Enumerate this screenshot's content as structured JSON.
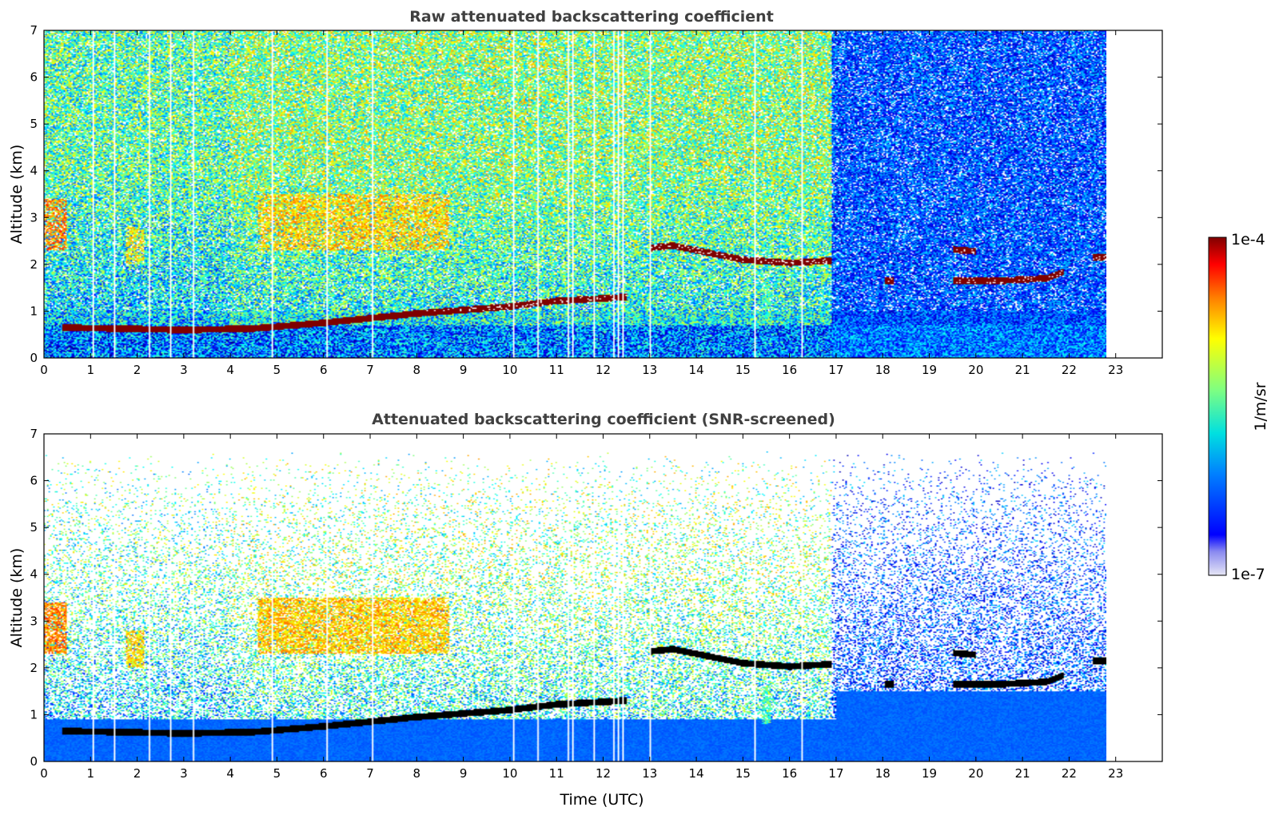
{
  "chart_data": [
    {
      "type": "heatmap",
      "title": "Raw attenuated backscattering coefficient",
      "xlabel": "",
      "ylabel": "Altitude (km)",
      "xlim": [
        0,
        24
      ],
      "ylim": [
        0,
        7
      ],
      "xticks": [
        "0",
        "1",
        "2",
        "3",
        "4",
        "5",
        "6",
        "7",
        "8",
        "9",
        "10",
        "11",
        "12",
        "13",
        "14",
        "15",
        "16",
        "17",
        "18",
        "19",
        "20",
        "21",
        "22",
        "23"
      ],
      "yticks": [
        "0",
        "1",
        "2",
        "3",
        "4",
        "5",
        "6",
        "7"
      ],
      "data_end_time": 22.8,
      "screened": false,
      "features": [
        {
          "name": "boundary layer top",
          "kind": "layer",
          "points": [
            [
              0.4,
              0.65
            ],
            [
              2,
              0.62
            ],
            [
              3,
              0.6
            ],
            [
              4.5,
              0.63
            ],
            [
              6,
              0.75
            ],
            [
              8,
              0.95
            ],
            [
              10,
              1.1
            ],
            [
              11,
              1.22
            ],
            [
              12.5,
              1.3
            ]
          ],
          "value": 1.0
        },
        {
          "name": "cloud 13-17",
          "kind": "layer",
          "points": [
            [
              13,
              2.35
            ],
            [
              13.5,
              2.4
            ],
            [
              14,
              2.3
            ],
            [
              15,
              2.1
            ],
            [
              16,
              2.03
            ],
            [
              16.9,
              2.08
            ]
          ],
          "value": 1.0
        },
        {
          "name": "cloud 19.5-20",
          "kind": "layer",
          "points": [
            [
              19.5,
              2.32
            ],
            [
              20,
              2.28
            ]
          ],
          "value": 1.0
        },
        {
          "name": "cloud 19.5-22",
          "kind": "layer",
          "points": [
            [
              19.5,
              1.65
            ],
            [
              20.5,
              1.65
            ],
            [
              21.5,
              1.7
            ],
            [
              21.9,
              1.85
            ]
          ],
          "value": 1.0
        },
        {
          "name": "cloud 18.1",
          "kind": "layer",
          "points": [
            [
              18.05,
              1.65
            ],
            [
              18.25,
              1.65
            ]
          ],
          "value": 1.0
        },
        {
          "name": "cloud 22.5",
          "kind": "layer",
          "points": [
            [
              22.5,
              2.15
            ],
            [
              22.8,
              2.15
            ]
          ],
          "value": 1.0
        },
        {
          "name": "aerosol 0-0.5",
          "kind": "patch",
          "t": [
            0,
            0.5
          ],
          "z": [
            2.3,
            3.4
          ],
          "value": 0.75
        },
        {
          "name": "aerosol 1.8-2.2",
          "kind": "patch",
          "t": [
            1.75,
            2.15
          ],
          "z": [
            2.0,
            2.8
          ],
          "value": 0.65
        },
        {
          "name": "aerosol 4.6-8.7",
          "kind": "patch",
          "t": [
            4.6,
            8.7
          ],
          "z": [
            2.3,
            3.5
          ],
          "value": 0.68
        },
        {
          "name": "aerosol 15.5",
          "kind": "patch",
          "t": [
            15.4,
            15.6
          ],
          "z": [
            0.8,
            1.6
          ],
          "value": 0.45
        }
      ]
    },
    {
      "type": "heatmap",
      "title": "Attenuated backscattering coefficient (SNR-screened)",
      "xlabel": "Time (UTC)",
      "ylabel": "Altitude (km)",
      "xlim": [
        0,
        24
      ],
      "ylim": [
        0,
        7
      ],
      "xticks": [
        "0",
        "1",
        "2",
        "3",
        "4",
        "5",
        "6",
        "7",
        "8",
        "9",
        "10",
        "11",
        "12",
        "13",
        "14",
        "15",
        "16",
        "17",
        "18",
        "19",
        "20",
        "21",
        "22",
        "23"
      ],
      "yticks": [
        "0",
        "1",
        "2",
        "3",
        "4",
        "5",
        "6",
        "7"
      ],
      "data_end_time": 22.8,
      "screened": true,
      "saturated_color": "#000000"
    }
  ],
  "colorbar": {
    "label": "1/m/sr",
    "max_label": "1e-4",
    "min_label": "1e-7",
    "colormap": "jet"
  }
}
